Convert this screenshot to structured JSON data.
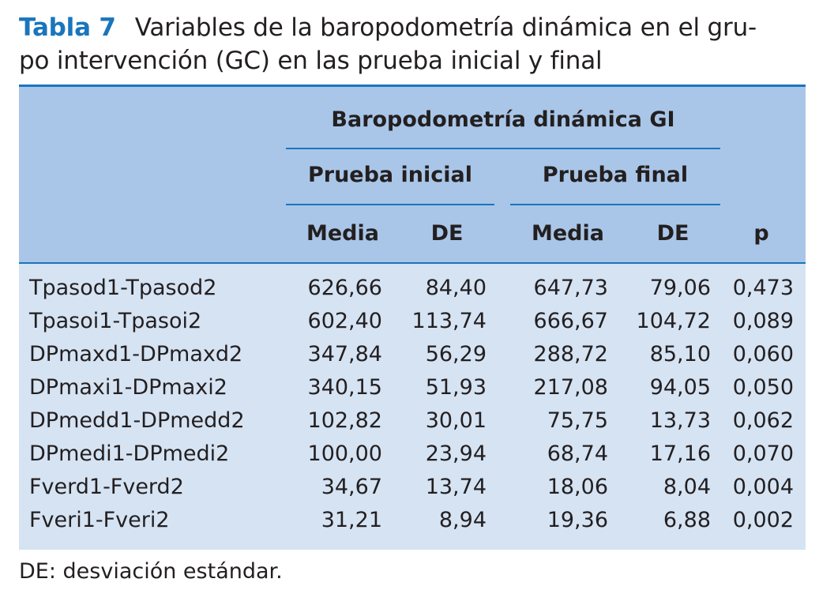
{
  "caption": {
    "table_number": "Tabla 7",
    "title_line1": "Variables de la baropodometría dinámica en el gru-",
    "title_line2": "po intervención (GC) en las prueba inicial y final"
  },
  "table": {
    "group_header": "Baropodometría dinámica GI",
    "subgroups": [
      "Prueba inicial",
      "Prueba final"
    ],
    "columns": [
      "Media",
      "DE",
      "Media",
      "DE",
      "p"
    ],
    "rows": [
      {
        "name": "Tpasod1-Tpasod2",
        "values": [
          "626,66",
          "84,40",
          "647,73",
          "79,06",
          "0,473"
        ]
      },
      {
        "name": "Tpasoi1-Tpasoi2",
        "values": [
          "602,40",
          "113,74",
          "666,67",
          "104,72",
          "0,089"
        ]
      },
      {
        "name": "DPmaxd1-DPmaxd2",
        "values": [
          "347,84",
          "56,29",
          "288,72",
          "85,10",
          "0,060"
        ]
      },
      {
        "name": "DPmaxi1-DPmaxi2",
        "values": [
          "340,15",
          "51,93",
          "217,08",
          "94,05",
          "0,050"
        ]
      },
      {
        "name": "DPmedd1-DPmedd2",
        "values": [
          "102,82",
          "30,01",
          "75,75",
          "13,73",
          "0,062"
        ]
      },
      {
        "name": "DPmedi1-DPmedi2",
        "values": [
          "100,00",
          "23,94",
          "68,74",
          "17,16",
          "0,070"
        ]
      },
      {
        "name": "Fverd1-Fverd2",
        "values": [
          "34,67",
          "13,74",
          "18,06",
          "8,04",
          "0,004"
        ]
      },
      {
        "name": "Fveri1-Fveri2",
        "values": [
          "31,21",
          "8,94",
          "19,36",
          "6,88",
          "0,002"
        ]
      }
    ]
  },
  "footnote": "DE: desviación estándar.",
  "colors": {
    "accent": "#1a75bc",
    "header_bg": "#a9c6e8",
    "body_bg": "#d5e3f3"
  }
}
